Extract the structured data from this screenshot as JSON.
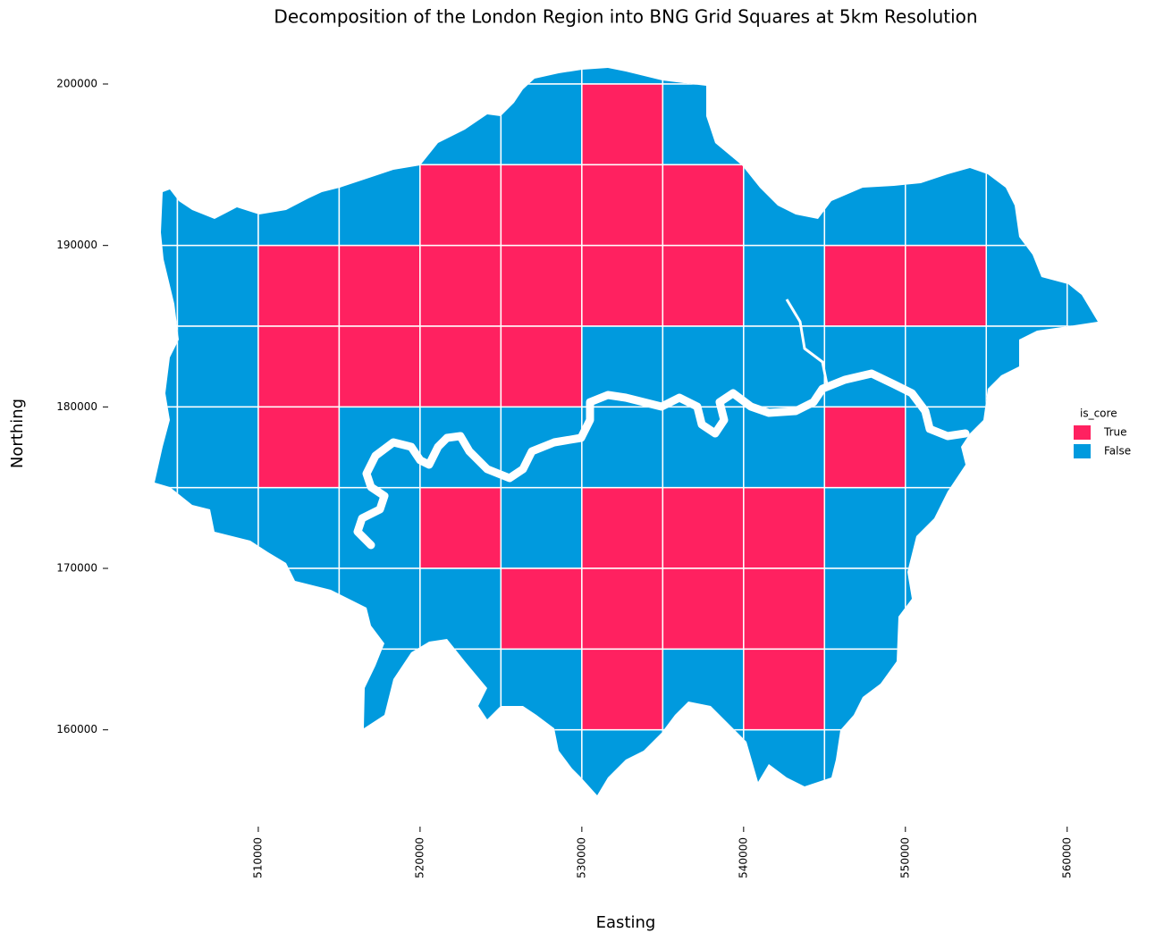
{
  "chart_data": {
    "type": "grid-map",
    "title": "Decomposition of the London Region into BNG Grid Squares at 5km Resolution",
    "x_label": "Easting",
    "y_label": "Northing",
    "xlim": [
      503500,
      562500
    ],
    "ylim": [
      155500,
      201500
    ],
    "xticks": [
      510000,
      520000,
      530000,
      540000,
      550000,
      560000
    ],
    "yticks": [
      160000,
      170000,
      180000,
      190000,
      200000
    ],
    "cell_size": 5000,
    "legend": {
      "title": "is_core",
      "entries": [
        {
          "label": "True",
          "color": "#ff2160"
        },
        {
          "label": "False",
          "color": "#009ade"
        }
      ]
    },
    "cells": [
      {
        "easting": 525000,
        "northing": 200000,
        "is_core": false
      },
      {
        "easting": 530000,
        "northing": 200000,
        "is_core": false
      },
      {
        "easting": 535000,
        "northing": 200000,
        "is_core": false
      },
      {
        "easting": 520000,
        "northing": 195000,
        "is_core": false
      },
      {
        "easting": 525000,
        "northing": 195000,
        "is_core": false
      },
      {
        "easting": 530000,
        "northing": 195000,
        "is_core": true
      },
      {
        "easting": 535000,
        "northing": 195000,
        "is_core": false
      },
      {
        "easting": 500000,
        "northing": 190000,
        "is_core": false
      },
      {
        "easting": 505000,
        "northing": 190000,
        "is_core": false
      },
      {
        "easting": 510000,
        "northing": 190000,
        "is_core": false
      },
      {
        "easting": 515000,
        "northing": 190000,
        "is_core": false
      },
      {
        "easting": 520000,
        "northing": 190000,
        "is_core": true
      },
      {
        "easting": 525000,
        "northing": 190000,
        "is_core": true
      },
      {
        "easting": 530000,
        "northing": 190000,
        "is_core": true
      },
      {
        "easting": 535000,
        "northing": 190000,
        "is_core": true
      },
      {
        "easting": 540000,
        "northing": 190000,
        "is_core": false
      },
      {
        "easting": 545000,
        "northing": 190000,
        "is_core": false
      },
      {
        "easting": 550000,
        "northing": 190000,
        "is_core": false
      },
      {
        "easting": 555000,
        "northing": 190000,
        "is_core": false
      },
      {
        "easting": 500000,
        "northing": 185000,
        "is_core": false
      },
      {
        "easting": 505000,
        "northing": 185000,
        "is_core": false
      },
      {
        "easting": 510000,
        "northing": 185000,
        "is_core": true
      },
      {
        "easting": 515000,
        "northing": 185000,
        "is_core": true
      },
      {
        "easting": 520000,
        "northing": 185000,
        "is_core": true
      },
      {
        "easting": 525000,
        "northing": 185000,
        "is_core": true
      },
      {
        "easting": 530000,
        "northing": 185000,
        "is_core": true
      },
      {
        "easting": 535000,
        "northing": 185000,
        "is_core": true
      },
      {
        "easting": 540000,
        "northing": 185000,
        "is_core": false
      },
      {
        "easting": 545000,
        "northing": 185000,
        "is_core": true
      },
      {
        "easting": 550000,
        "northing": 185000,
        "is_core": true
      },
      {
        "easting": 555000,
        "northing": 185000,
        "is_core": false
      },
      {
        "easting": 560000,
        "northing": 185000,
        "is_core": false
      },
      {
        "easting": 500000,
        "northing": 180000,
        "is_core": false
      },
      {
        "easting": 505000,
        "northing": 180000,
        "is_core": false
      },
      {
        "easting": 510000,
        "northing": 180000,
        "is_core": true
      },
      {
        "easting": 515000,
        "northing": 180000,
        "is_core": true
      },
      {
        "easting": 520000,
        "northing": 180000,
        "is_core": true
      },
      {
        "easting": 525000,
        "northing": 180000,
        "is_core": true
      },
      {
        "easting": 530000,
        "northing": 180000,
        "is_core": false
      },
      {
        "easting": 535000,
        "northing": 180000,
        "is_core": false
      },
      {
        "easting": 540000,
        "northing": 180000,
        "is_core": false
      },
      {
        "easting": 545000,
        "northing": 180000,
        "is_core": false
      },
      {
        "easting": 550000,
        "northing": 180000,
        "is_core": false
      },
      {
        "easting": 555000,
        "northing": 180000,
        "is_core": false
      },
      {
        "easting": 500000,
        "northing": 175000,
        "is_core": false
      },
      {
        "easting": 505000,
        "northing": 175000,
        "is_core": false
      },
      {
        "easting": 510000,
        "northing": 175000,
        "is_core": true
      },
      {
        "easting": 515000,
        "northing": 175000,
        "is_core": false
      },
      {
        "easting": 520000,
        "northing": 175000,
        "is_core": false
      },
      {
        "easting": 525000,
        "northing": 175000,
        "is_core": false
      },
      {
        "easting": 530000,
        "northing": 175000,
        "is_core": false
      },
      {
        "easting": 535000,
        "northing": 175000,
        "is_core": false
      },
      {
        "easting": 540000,
        "northing": 175000,
        "is_core": false
      },
      {
        "easting": 545000,
        "northing": 175000,
        "is_core": true
      },
      {
        "easting": 550000,
        "northing": 175000,
        "is_core": false
      },
      {
        "easting": 500000,
        "northing": 170000,
        "is_core": false
      },
      {
        "easting": 505000,
        "northing": 170000,
        "is_core": false
      },
      {
        "easting": 510000,
        "northing": 170000,
        "is_core": false
      },
      {
        "easting": 515000,
        "northing": 170000,
        "is_core": false
      },
      {
        "easting": 520000,
        "northing": 170000,
        "is_core": true
      },
      {
        "easting": 525000,
        "northing": 170000,
        "is_core": false
      },
      {
        "easting": 530000,
        "northing": 170000,
        "is_core": true
      },
      {
        "easting": 535000,
        "northing": 170000,
        "is_core": true
      },
      {
        "easting": 540000,
        "northing": 170000,
        "is_core": true
      },
      {
        "easting": 545000,
        "northing": 170000,
        "is_core": false
      },
      {
        "easting": 550000,
        "northing": 170000,
        "is_core": false
      },
      {
        "easting": 510000,
        "northing": 165000,
        "is_core": false
      },
      {
        "easting": 515000,
        "northing": 165000,
        "is_core": false
      },
      {
        "easting": 520000,
        "northing": 165000,
        "is_core": false
      },
      {
        "easting": 525000,
        "northing": 165000,
        "is_core": true
      },
      {
        "easting": 530000,
        "northing": 165000,
        "is_core": true
      },
      {
        "easting": 535000,
        "northing": 165000,
        "is_core": true
      },
      {
        "easting": 540000,
        "northing": 165000,
        "is_core": true
      },
      {
        "easting": 545000,
        "northing": 165000,
        "is_core": false
      },
      {
        "easting": 550000,
        "northing": 165000,
        "is_core": false
      },
      {
        "easting": 515000,
        "northing": 160000,
        "is_core": false
      },
      {
        "easting": 520000,
        "northing": 160000,
        "is_core": false
      },
      {
        "easting": 525000,
        "northing": 160000,
        "is_core": false
      },
      {
        "easting": 530000,
        "northing": 160000,
        "is_core": true
      },
      {
        "easting": 535000,
        "northing": 160000,
        "is_core": false
      },
      {
        "easting": 540000,
        "northing": 160000,
        "is_core": true
      },
      {
        "easting": 545000,
        "northing": 160000,
        "is_core": false
      },
      {
        "easting": 525000,
        "northing": 155000,
        "is_core": false
      },
      {
        "easting": 530000,
        "northing": 155000,
        "is_core": false
      },
      {
        "easting": 535000,
        "northing": 155000,
        "is_core": false
      },
      {
        "easting": 540000,
        "northing": 155000,
        "is_core": false
      },
      {
        "easting": 545000,
        "northing": 155000,
        "is_core": false
      }
    ]
  }
}
